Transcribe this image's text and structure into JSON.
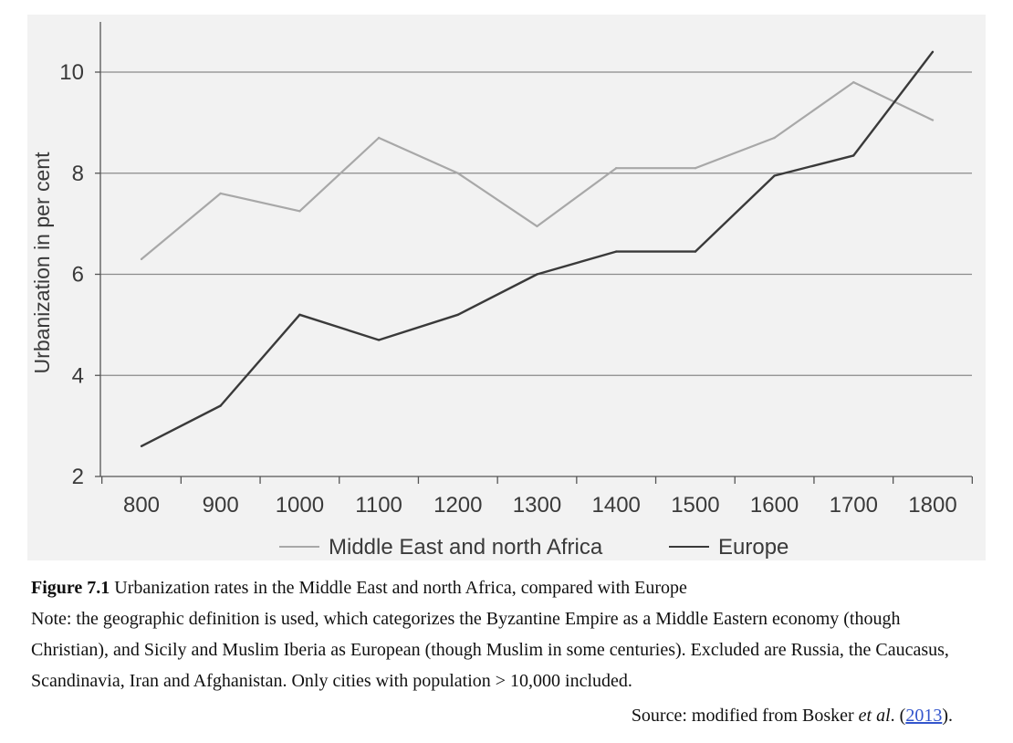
{
  "chart_data": {
    "type": "line",
    "ylabel": "Urbanization in per cent",
    "xlabel": "",
    "x": [
      800,
      900,
      1000,
      1100,
      1200,
      1300,
      1400,
      1500,
      1600,
      1700,
      1800
    ],
    "x_tick_labels": [
      "800",
      "900",
      "1000",
      "1100",
      "1200",
      "1300",
      "1400",
      "1500",
      "1600",
      "1700",
      "1800"
    ],
    "ylim": [
      2,
      11
    ],
    "y_ticks": [
      2,
      4,
      6,
      8,
      10
    ],
    "y_tick_labels": [
      "2",
      "4",
      "6",
      "8",
      "10"
    ],
    "grid": "horizontal",
    "legend_position": "bottom",
    "series": [
      {
        "name": "Middle East and north Africa",
        "color": "#a8a8a8",
        "values": [
          6.3,
          7.6,
          7.25,
          8.7,
          8.0,
          6.95,
          8.1,
          8.1,
          8.7,
          9.8,
          9.05
        ]
      },
      {
        "name": "Europe",
        "color": "#3a3a3a",
        "values": [
          2.6,
          3.4,
          5.2,
          4.7,
          5.2,
          6.0,
          6.45,
          6.45,
          7.95,
          8.35,
          10.4
        ]
      }
    ]
  },
  "caption": {
    "figure_label": "Figure 7.1",
    "title": "Urbanization rates in the Middle East and north Africa, compared with Europe",
    "note": "Note: the geographic definition is used, which categorizes the Byzantine Empire as a Middle Eastern economy (though Christian), and Sicily and Muslim Iberia as European (though Muslim in some centuries). Excluded are Russia, the Caucasus, Scandinavia, Iran and Afghanistan. Only cities with population > 10,000 included.",
    "source_prefix": "Source: modified from Bosker",
    "source_etal": "et al",
    "source_mid": ". (",
    "source_year": "2013",
    "source_suffix": ")."
  }
}
